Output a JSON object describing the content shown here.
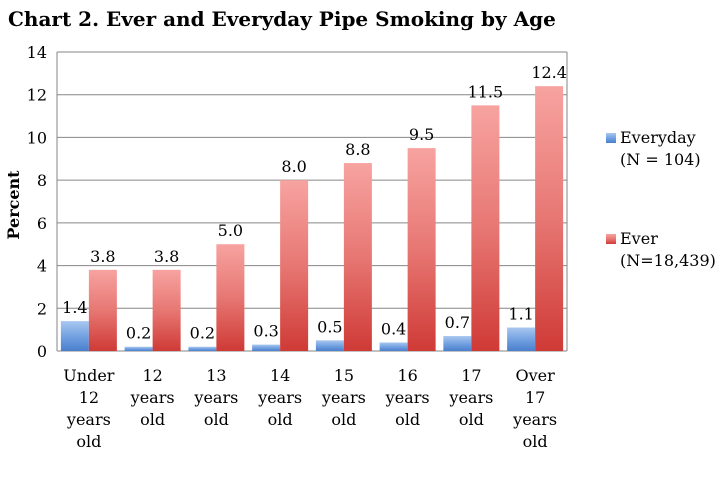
{
  "chart_data": {
    "type": "bar",
    "title": "Chart 2. Ever and Everyday Pipe Smoking by Age",
    "ylabel": "Percent",
    "xlabel": "",
    "ylim": [
      0,
      14
    ],
    "yticks": [
      0,
      2,
      4,
      6,
      8,
      10,
      12,
      14
    ],
    "grid": "horizontal",
    "legend_position": "right",
    "categories": [
      [
        "Under",
        "12",
        "years",
        "old"
      ],
      [
        "12",
        "years",
        "old"
      ],
      [
        "13",
        "years",
        "old"
      ],
      [
        "14",
        "years",
        "old"
      ],
      [
        "15",
        "years",
        "old"
      ],
      [
        "16",
        "years",
        "old"
      ],
      [
        "17",
        "years",
        "old"
      ],
      [
        "Over",
        "17",
        "years",
        "old"
      ]
    ],
    "series": [
      {
        "name": "Everyday",
        "legend_lines": [
          "Everyday",
          "(N = 104)"
        ],
        "color": "#4f81bd",
        "values": [
          1.4,
          0.2,
          0.2,
          0.3,
          0.5,
          0.4,
          0.7,
          1.1
        ],
        "labels": [
          "1.4",
          "0.2",
          "0.2",
          "0.3",
          "0.5",
          "0.4",
          "0.7",
          "1.1"
        ]
      },
      {
        "name": "Ever",
        "legend_lines": [
          "Ever",
          "(N=18,439)"
        ],
        "color": "#d9403c",
        "values": [
          3.8,
          3.8,
          5.0,
          8.0,
          8.8,
          9.5,
          11.5,
          12.4
        ],
        "labels": [
          "3.8",
          "3.8",
          "5.0",
          "8.0",
          "8.8",
          "9.5",
          "11.5",
          "12.4"
        ]
      }
    ]
  }
}
